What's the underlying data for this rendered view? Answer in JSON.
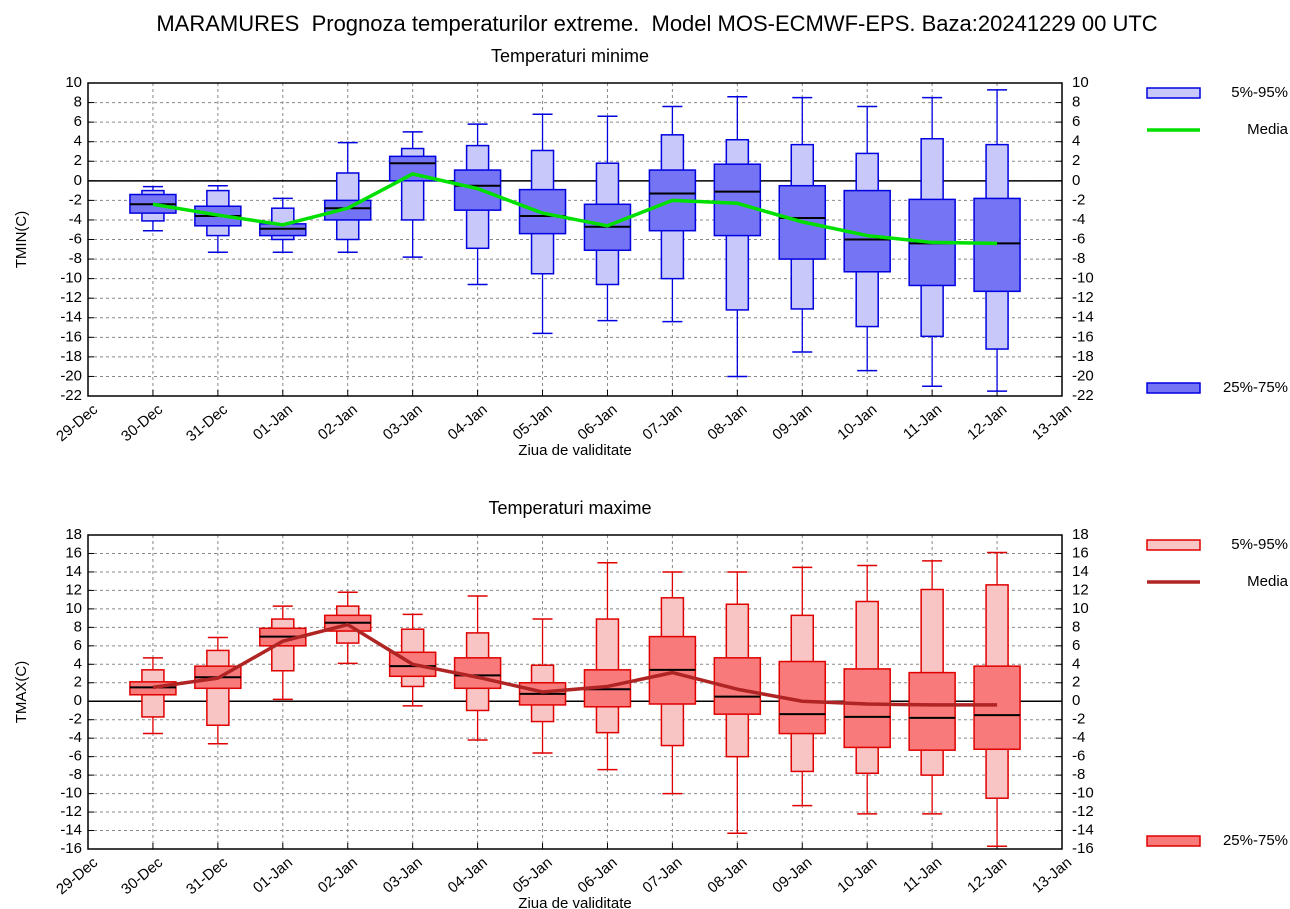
{
  "title": "MARAMURES  Prognoza temperaturilor extreme.  Model MOS-ECMWF-EPS. Baza:20241229 00 UTC",
  "chart_data": [
    {
      "type": "box",
      "title": "Temperaturi minime",
      "title_color": "#0000ff",
      "ylabel": "TMIN(C)",
      "xlabel": "Ziua de validitate",
      "categories": [
        "29-Dec",
        "30-Dec",
        "31-Dec",
        "01-Jan",
        "02-Jan",
        "03-Jan",
        "04-Jan",
        "05-Jan",
        "06-Jan",
        "07-Jan",
        "08-Jan",
        "09-Jan",
        "10-Jan",
        "11-Jan",
        "12-Jan",
        "13-Jan"
      ],
      "ylim": [
        -22,
        10
      ],
      "yticks": [
        -22,
        -20,
        -18,
        -16,
        -14,
        -12,
        -10,
        -8,
        -6,
        -4,
        -2,
        0,
        2,
        4,
        6,
        8,
        10
      ],
      "grid": true,
      "edge_color": "#0000e0",
      "whisker_low": [
        null,
        -5.1,
        -7.3,
        -7.3,
        -7.3,
        -7.8,
        -10.6,
        -15.6,
        -14.3,
        -14.4,
        -20,
        -17.5,
        -19.4,
        -21,
        -21.5,
        null
      ],
      "whisker_high": [
        null,
        -0.6,
        -0.5,
        -1.8,
        3.9,
        5.0,
        5.8,
        6.8,
        6.6,
        7.6,
        8.6,
        8.5,
        7.6,
        8.5,
        9.3,
        null
      ],
      "median": [
        null,
        -2.4,
        -3.6,
        -4.9,
        -2.8,
        1.8,
        -0.5,
        -3.6,
        -4.7,
        -1.3,
        -1.1,
        -3.8,
        -6.0,
        -6.4,
        -6.4,
        null
      ],
      "series": [
        {
          "name": "5%-95%",
          "color": "#c8c8fa",
          "low": [
            null,
            -4.1,
            -5.6,
            -6.0,
            -6.0,
            -4.0,
            -6.9,
            -9.5,
            -10.6,
            -10.0,
            -13.2,
            -13.1,
            -14.9,
            -15.9,
            -17.2,
            null
          ],
          "high": [
            null,
            -1.0,
            -1.0,
            -2.8,
            0.8,
            3.3,
            3.6,
            3.1,
            1.8,
            4.7,
            4.2,
            3.7,
            2.8,
            4.3,
            3.7,
            null
          ]
        },
        {
          "name": "25%-75%",
          "color": "#7474f4",
          "low": [
            null,
            -3.3,
            -4.6,
            -5.6,
            -4.0,
            0,
            -3.0,
            -5.4,
            -7.1,
            -5.1,
            -5.6,
            -8.0,
            -9.3,
            -10.7,
            -11.3,
            null
          ],
          "high": [
            null,
            -1.4,
            -2.6,
            -4.4,
            -2.0,
            2.5,
            1.1,
            -0.9,
            -2.4,
            1.1,
            1.7,
            -0.5,
            -1.0,
            -1.9,
            -1.8,
            null
          ]
        }
      ],
      "mean": {
        "name": "Media",
        "color": "#00e000",
        "values": [
          null,
          -2.4,
          -3.5,
          -4.5,
          -2.8,
          0.7,
          -0.8,
          -3.3,
          -4.6,
          -2.0,
          -2.3,
          -4.2,
          -5.6,
          -6.3,
          -6.4,
          null
        ]
      }
    },
    {
      "type": "box",
      "title": "Temperaturi maxime",
      "title_color": "#ff0000",
      "ylabel": "TMAX(C)",
      "xlabel": "Ziua de validitate",
      "categories": [
        "29-Dec",
        "30-Dec",
        "31-Dec",
        "01-Jan",
        "02-Jan",
        "03-Jan",
        "04-Jan",
        "05-Jan",
        "06-Jan",
        "07-Jan",
        "08-Jan",
        "09-Jan",
        "10-Jan",
        "11-Jan",
        "12-Jan",
        "13-Jan"
      ],
      "ylim": [
        -16,
        18
      ],
      "yticks": [
        -16,
        -14,
        -12,
        -10,
        -8,
        -6,
        -4,
        -2,
        0,
        2,
        4,
        6,
        8,
        10,
        12,
        14,
        16,
        18
      ],
      "grid": true,
      "edge_color": "#e00000",
      "whisker_low": [
        null,
        -3.5,
        -4.6,
        0.2,
        4.1,
        -0.5,
        -4.2,
        -5.6,
        -7.4,
        -10,
        -14.3,
        -11.3,
        -12.2,
        -12.2,
        -15.7,
        null
      ],
      "whisker_high": [
        null,
        4.7,
        6.9,
        10.3,
        11.8,
        9.4,
        11.4,
        8.9,
        15.0,
        14.0,
        14.0,
        14.5,
        14.7,
        15.2,
        16.1,
        null
      ],
      "median": [
        null,
        1.5,
        2.6,
        7.0,
        8.5,
        3.8,
        2.8,
        0.8,
        1.3,
        3.4,
        0.5,
        -1.4,
        -1.7,
        -1.8,
        -1.5,
        null
      ],
      "series": [
        {
          "name": "5%-95%",
          "color": "#f8c4c4",
          "low": [
            null,
            -1.7,
            -2.6,
            3.3,
            6.3,
            1.6,
            -1.0,
            -2.2,
            -3.4,
            -4.8,
            -6.0,
            -7.6,
            -7.8,
            -8.0,
            -10.5,
            null
          ],
          "high": [
            null,
            3.4,
            5.5,
            8.9,
            10.3,
            7.8,
            7.4,
            3.9,
            8.9,
            11.2,
            10.5,
            9.3,
            10.8,
            12.1,
            12.6,
            null
          ]
        },
        {
          "name": "25%-75%",
          "color": "#f87a7a",
          "low": [
            null,
            0.7,
            1.4,
            6.0,
            7.6,
            2.7,
            1.4,
            -0.4,
            -0.6,
            -0.3,
            -1.4,
            -3.5,
            -5.0,
            -5.3,
            -5.2,
            null
          ],
          "high": [
            null,
            2.1,
            3.8,
            7.9,
            9.3,
            5.3,
            4.7,
            2.0,
            3.4,
            7.0,
            4.7,
            4.3,
            3.5,
            3.1,
            3.8,
            null
          ]
        }
      ],
      "mean": {
        "name": "Media",
        "color": "#b02424",
        "values": [
          null,
          1.5,
          2.5,
          6.5,
          8.3,
          4.0,
          2.6,
          1.0,
          1.6,
          3.1,
          1.3,
          0.0,
          -0.3,
          -0.4,
          -0.4,
          null
        ]
      }
    }
  ]
}
